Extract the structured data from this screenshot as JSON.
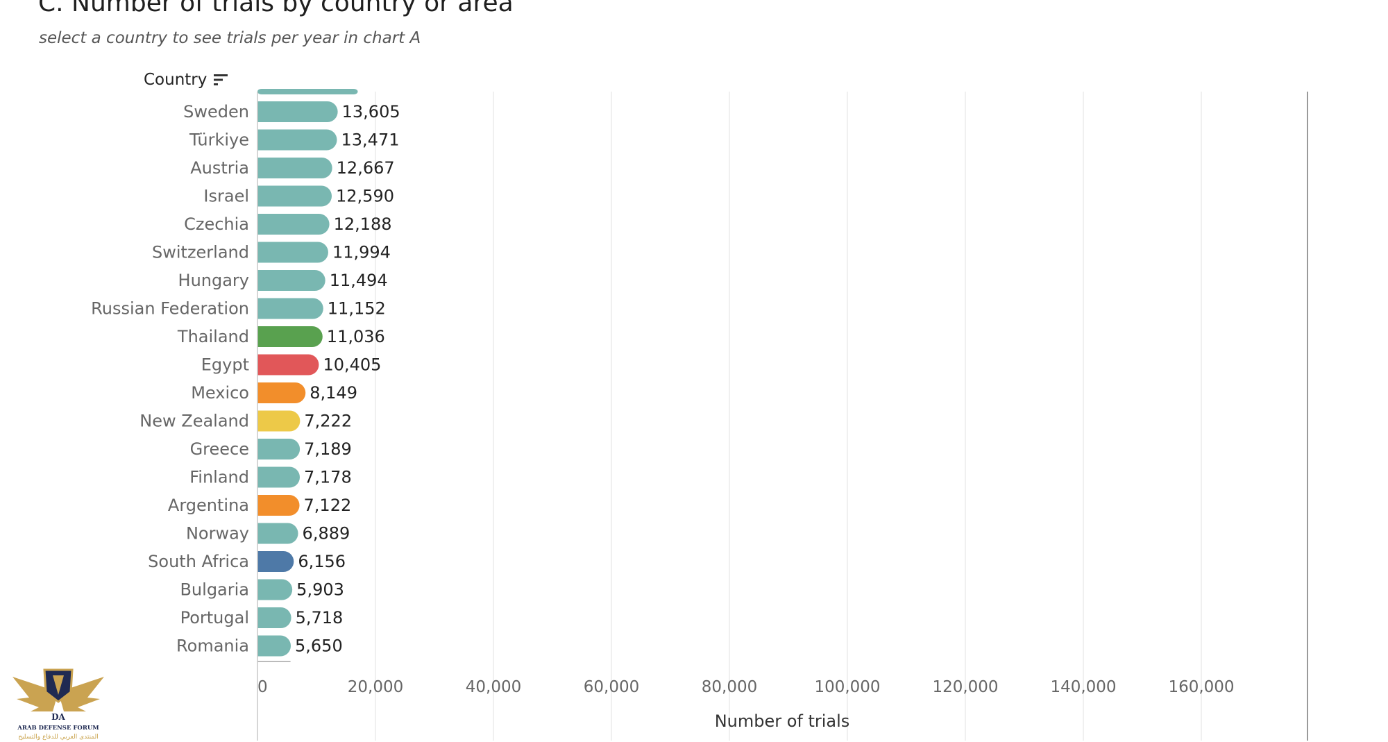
{
  "title": "C. Number of trials by country or area",
  "subtitle": "select a country to see trials per year in chart A",
  "country_header": {
    "label": "Country",
    "icon": "sort-descending-icon"
  },
  "logo": {
    "name": "ARAB DEFENSE FORUM",
    "letters": "DA",
    "arabic": "المنتدى العربي للدفاع والتسليح"
  },
  "chart_data": {
    "type": "bar",
    "orientation": "horizontal",
    "xlabel": "Number of trials",
    "xlim": [
      0,
      180000
    ],
    "x_ticks": [
      0,
      20000,
      40000,
      60000,
      80000,
      100000,
      120000,
      140000,
      160000
    ],
    "x_tick_labels": [
      "0",
      "20,000",
      "40,000",
      "60,000",
      "80,000",
      "100,000",
      "120,000",
      "140,000",
      "160,000"
    ],
    "grid": true,
    "categories": [
      "Sweden",
      "Türkiye",
      "Austria",
      "Israel",
      "Czechia",
      "Switzerland",
      "Hungary",
      "Russian Federation",
      "Thailand",
      "Egypt",
      "Mexico",
      "New Zealand",
      "Greece",
      "Finland",
      "Argentina",
      "Norway",
      "South Africa",
      "Bulgaria",
      "Portugal",
      "Romania"
    ],
    "values": [
      13605,
      13471,
      12667,
      12590,
      12188,
      11994,
      11494,
      11152,
      11036,
      10405,
      8149,
      7222,
      7189,
      7178,
      7122,
      6889,
      6156,
      5903,
      5718,
      5650
    ],
    "value_labels": [
      "13,605",
      "13,471",
      "12,667",
      "12,590",
      "12,188",
      "11,994",
      "11,494",
      "11,152",
      "11,036",
      "10,405",
      "8,149",
      "7,222",
      "7,189",
      "7,178",
      "7,122",
      "6,889",
      "6,156",
      "5,903",
      "5,718",
      "5,650"
    ],
    "colors": [
      "#79b7b1",
      "#79b7b1",
      "#79b7b1",
      "#79b7b1",
      "#79b7b1",
      "#79b7b1",
      "#79b7b1",
      "#79b7b1",
      "#59a14f",
      "#e15759",
      "#f28e2b",
      "#edc948",
      "#79b7b1",
      "#79b7b1",
      "#f28e2b",
      "#79b7b1",
      "#4e79a7",
      "#79b7b1",
      "#79b7b1",
      "#79b7b1"
    ],
    "clipped_value_above": 17000,
    "clipped_value_below": 5600
  }
}
